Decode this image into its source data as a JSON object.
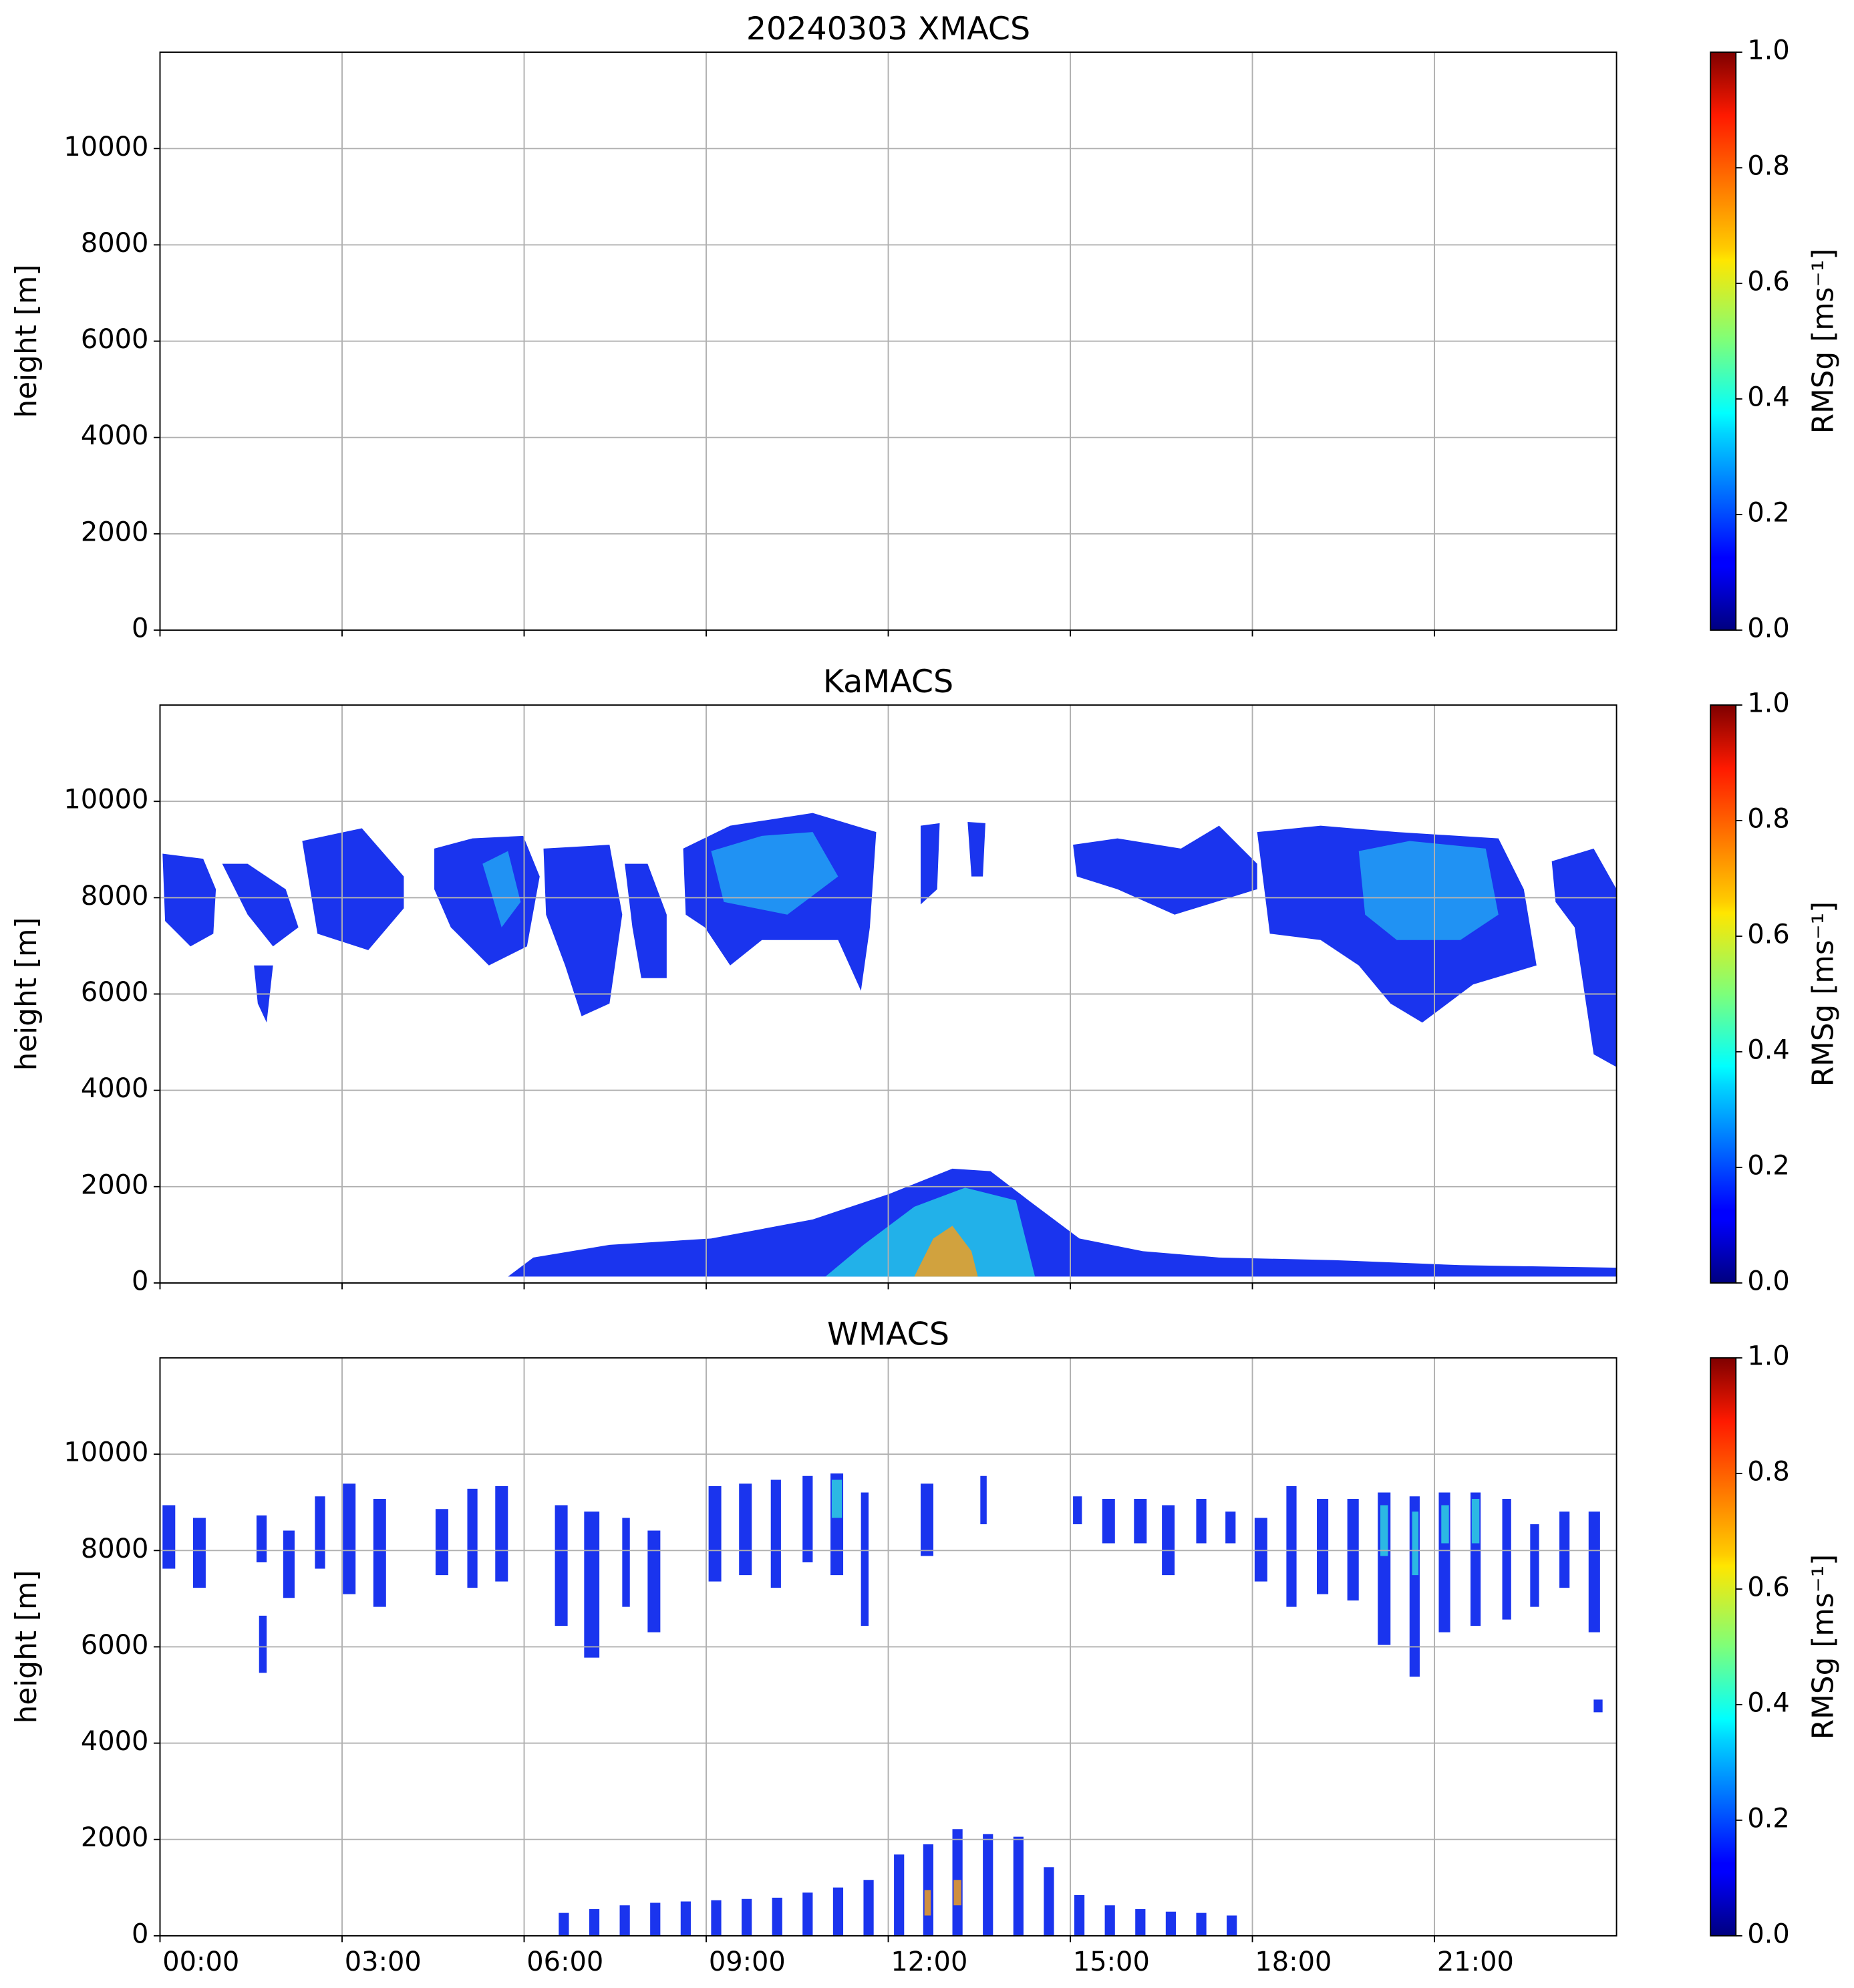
{
  "chart_data": [
    {
      "type": "heatmap",
      "title": "20240303 XMACS",
      "ylabel": "height [m]",
      "xlim": [
        0,
        24
      ],
      "xticks": [
        0,
        3,
        6,
        9,
        12,
        15,
        18,
        21
      ],
      "ylim": [
        0,
        12000
      ],
      "yticks": [
        0,
        2000,
        4000,
        6000,
        8000,
        10000
      ],
      "grid": true,
      "colorbar": {
        "label": "RMSg [ms⁻¹]",
        "colormap": "jet",
        "lim": [
          0,
          1
        ],
        "ticks": [
          {
            "value": 0,
            "label": "0.0"
          },
          {
            "value": 0.2,
            "label": "0.2"
          },
          {
            "value": 0.4,
            "label": "0.4"
          },
          {
            "value": 0.6,
            "label": "0.6"
          },
          {
            "value": 0.8,
            "label": "0.8"
          },
          {
            "value": 1,
            "label": "1.0"
          }
        ]
      }
    },
    {
      "type": "heatmap",
      "title": "KaMACS",
      "ylabel": "height [m]",
      "xlim": [
        0,
        24
      ],
      "xticks": [
        0,
        3,
        6,
        9,
        12,
        15,
        18,
        21
      ],
      "ylim": [
        0,
        12000
      ],
      "yticks": [
        0,
        2000,
        4000,
        6000,
        8000,
        10000
      ],
      "grid": true,
      "colorbar": {
        "label": "RMSg [ms⁻¹]",
        "colormap": "jet",
        "lim": [
          0,
          1
        ],
        "ticks": [
          {
            "value": 0,
            "label": "0.0"
          },
          {
            "value": 0.2,
            "label": "0.2"
          },
          {
            "value": 0.4,
            "label": "0.4"
          },
          {
            "value": 0.6,
            "label": "0.6"
          },
          {
            "value": 0.8,
            "label": "0.8"
          },
          {
            "value": 1,
            "label": "1.0"
          }
        ]
      }
    },
    {
      "type": "heatmap",
      "title": "WMACS",
      "ylabel": "height [m]",
      "xlim": [
        0,
        24
      ],
      "xticks": [
        {
          "value": 0,
          "label": "00:00"
        },
        {
          "value": 3,
          "label": "03:00"
        },
        {
          "value": 6,
          "label": "06:00"
        },
        {
          "value": 9,
          "label": "09:00"
        },
        {
          "value": 12,
          "label": "12:00"
        },
        {
          "value": 15,
          "label": "15:00"
        },
        {
          "value": 18,
          "label": "18:00"
        },
        {
          "value": 21,
          "label": "21:00"
        }
      ],
      "ylim": [
        0,
        12000
      ],
      "yticks": [
        0,
        2000,
        4000,
        6000,
        8000,
        10000
      ],
      "grid": true,
      "colorbar": {
        "label": "RMSg [ms⁻¹]",
        "colormap": "jet",
        "lim": [
          0,
          1
        ],
        "ticks": [
          {
            "value": 0,
            "label": "0.0"
          },
          {
            "value": 0.2,
            "label": "0.2"
          },
          {
            "value": 0.4,
            "label": "0.4"
          },
          {
            "value": 0.6,
            "label": "0.6"
          },
          {
            "value": 0.8,
            "label": "0.8"
          },
          {
            "value": 1,
            "label": "1.0"
          }
        ]
      }
    }
  ]
}
